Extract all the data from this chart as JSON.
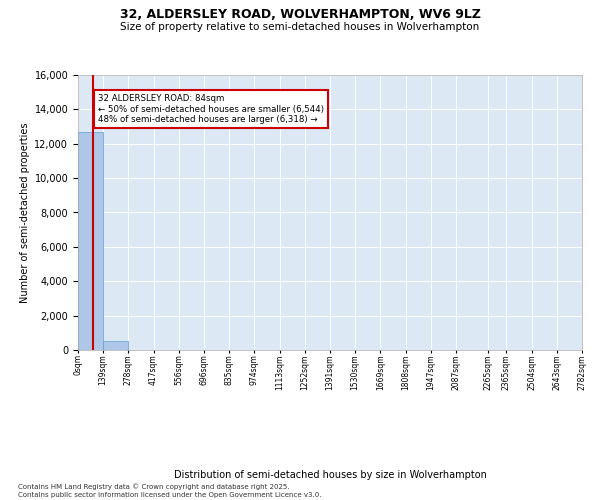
{
  "title_line1": "32, ALDERSLEY ROAD, WOLVERHAMPTON, WV6 9LZ",
  "title_line2": "Size of property relative to semi-detached houses in Wolverhampton",
  "xlabel": "Distribution of semi-detached houses by size in Wolverhampton",
  "ylabel": "Number of semi-detached properties",
  "footnote": "Contains HM Land Registry data © Crown copyright and database right 2025.\nContains public sector information licensed under the Open Government Licence v3.0.",
  "bin_edges": [
    0,
    139,
    278,
    417,
    556,
    696,
    835,
    974,
    1113,
    1252,
    1391,
    1530,
    1669,
    1808,
    1947,
    2087,
    2265,
    2365,
    2504,
    2643,
    2782
  ],
  "bar_heights": [
    12700,
    530,
    10,
    5,
    3,
    2,
    1,
    1,
    0,
    0,
    0,
    0,
    0,
    0,
    0,
    0,
    0,
    0,
    0,
    0
  ],
  "tick_labels": [
    "0sqm",
    "139sqm",
    "278sqm",
    "417sqm",
    "556sqm",
    "696sqm",
    "835sqm",
    "974sqm",
    "1113sqm",
    "1252sqm",
    "1391sqm",
    "1530sqm",
    "1669sqm",
    "1808sqm",
    "1947sqm",
    "2087sqm",
    "2265sqm",
    "2365sqm",
    "2504sqm",
    "2643sqm",
    "2782sqm"
  ],
  "bar_color": "#aec6e8",
  "bar_edge_color": "#5a9fd4",
  "property_size": 84,
  "property_label": "32 ALDERSLEY ROAD: 84sqm",
  "pct_smaller": 50,
  "count_smaller": 6544,
  "pct_larger": 48,
  "count_larger": 6318,
  "annotation_box_color": "#cc0000",
  "vline_color": "#cc0000",
  "bg_color": "#dce9f5",
  "ylim": [
    0,
    16000
  ],
  "yticks": [
    0,
    2000,
    4000,
    6000,
    8000,
    10000,
    12000,
    14000,
    16000
  ]
}
